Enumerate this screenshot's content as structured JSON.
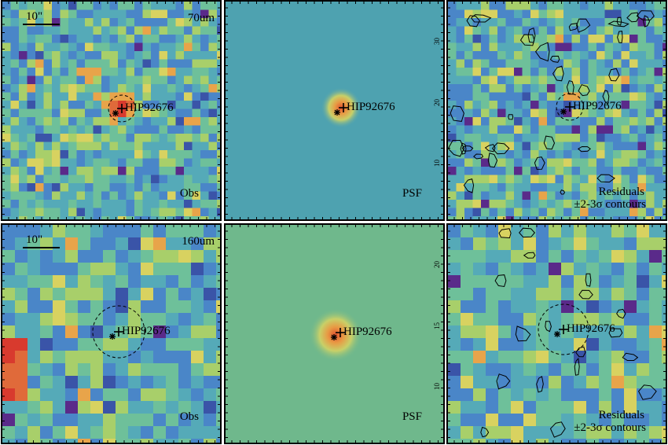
{
  "figure": {
    "rows": [
      {
        "band": "70um",
        "scale_bar_label": "10\"",
        "colors": {
          "obs_bg": "#58b0a8",
          "psf_bg": "#4ea2b0",
          "res_bg": "#5aae9e"
        },
        "panels": [
          {
            "type": "obs",
            "target_label": "HIP92676",
            "corner_label": "Obs"
          },
          {
            "type": "psf",
            "target_label": "HIP92676",
            "corner_label": "PSF"
          },
          {
            "type": "residuals",
            "target_label": "HIP92676",
            "corner_label_line1": "Residuals",
            "corner_label_line2": "±2-3σ contours"
          }
        ]
      },
      {
        "band": "160um",
        "scale_bar_label": "10\"",
        "colors": {
          "obs_bg": "#6db88a",
          "psf_bg": "#6fb88c",
          "res_bg": "#66b492"
        },
        "panels": [
          {
            "type": "obs",
            "target_label": "HIP92676",
            "corner_label": "Obs"
          },
          {
            "type": "psf",
            "target_label": "HIP92676",
            "corner_label": "PSF"
          },
          {
            "type": "residuals",
            "target_label": "HIP92676",
            "corner_label_line1": "Residuals",
            "corner_label_line2": "±2-3σ contours"
          }
        ]
      }
    ],
    "axis_ticks": {
      "row1_psf_right": [
        "30",
        "20",
        "10"
      ],
      "row2_psf_right": [
        "20",
        "15",
        "10"
      ]
    },
    "palette": [
      "#3a54a8",
      "#4a86c8",
      "#55aab8",
      "#6ec09a",
      "#a8cf6a",
      "#d8d260",
      "#e8a44a",
      "#e06a3a",
      "#d83a2e",
      "#5a2a8a"
    ]
  }
}
